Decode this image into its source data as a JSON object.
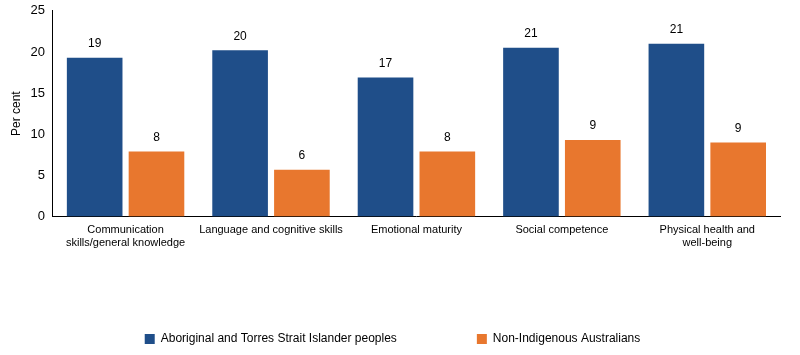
{
  "chart_data": {
    "type": "bar",
    "categories": [
      "Communication skills/general knowledge",
      "Language and cognitive skills",
      "Emotional maturity",
      "Social competence",
      "Physical health and well-being"
    ],
    "series": [
      {
        "name": "Aboriginal and Torres Strait Islander peoples",
        "color": "#1f4e89",
        "values": [
          19.3,
          20.2,
          16.9,
          20.5,
          21.0
        ],
        "value_labels": [
          "19",
          "20",
          "17",
          "21",
          "21"
        ]
      },
      {
        "name": "Non-Indigenous Australians",
        "color": "#e8772e",
        "values": [
          7.9,
          5.7,
          7.9,
          9.3,
          9.0
        ],
        "value_labels": [
          "8",
          "6",
          "8",
          "9",
          "9"
        ]
      }
    ],
    "y_label": "Per cent",
    "ylim": [
      0,
      25
    ],
    "yticks": [
      0,
      5,
      10,
      15,
      20,
      25
    ],
    "grid": false,
    "legend": "bottom",
    "data_labels": true
  }
}
